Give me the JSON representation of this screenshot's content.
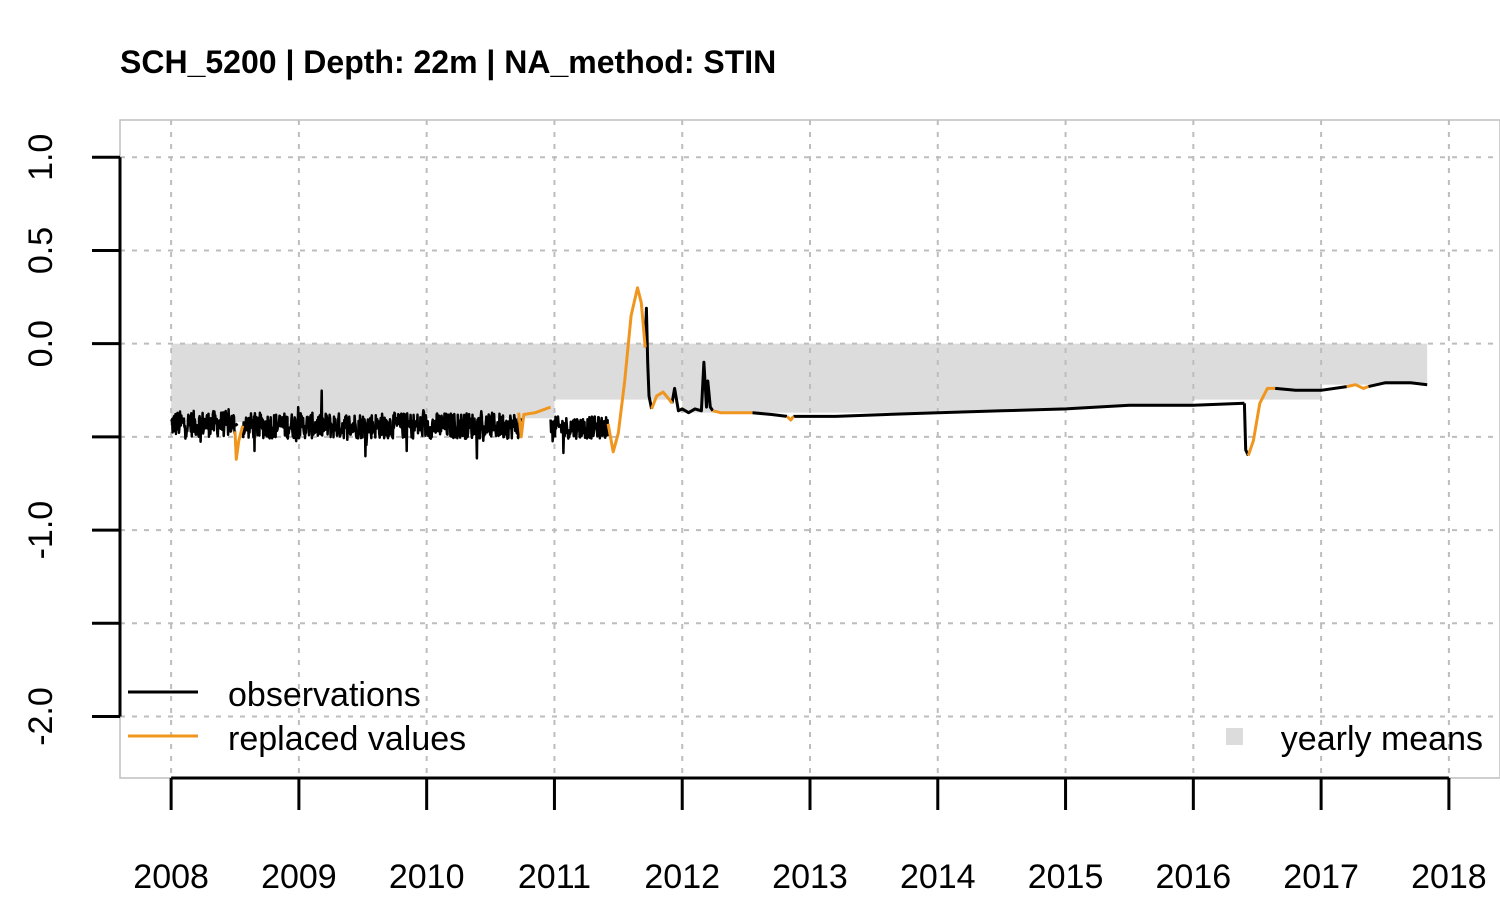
{
  "chart_data": {
    "type": "line",
    "title": "SCH_5200 | Depth: 22m | NA_method: STIN",
    "xlabel": "",
    "ylabel": "",
    "xlim": [
      2007.6,
      2018.4
    ],
    "ylim": [
      -2.33,
      1.2
    ],
    "x_ticks": [
      {
        "value": 2008,
        "label": "2008"
      },
      {
        "value": 2009,
        "label": "2009"
      },
      {
        "value": 2010,
        "label": "2010"
      },
      {
        "value": 2011,
        "label": "2011"
      },
      {
        "value": 2012,
        "label": "2012"
      },
      {
        "value": 2013,
        "label": "2013"
      },
      {
        "value": 2014,
        "label": "2014"
      },
      {
        "value": 2015,
        "label": "2015"
      },
      {
        "value": 2016,
        "label": "2016"
      },
      {
        "value": 2017,
        "label": "2017"
      },
      {
        "value": 2018,
        "label": "2018"
      }
    ],
    "y_ticks": [
      {
        "value": 1.0,
        "label": "1.0"
      },
      {
        "value": 0.5,
        "label": "0.5"
      },
      {
        "value": 0.0,
        "label": "0.0"
      },
      {
        "value": -0.5,
        "label": ""
      },
      {
        "value": -1.0,
        "label": "-1.0"
      },
      {
        "value": -1.5,
        "label": ""
      },
      {
        "value": -2.0,
        "label": "-2.0"
      }
    ],
    "grid": true,
    "legend": {
      "left_position": "bottom-left",
      "right_position": "bottom-right",
      "entries": [
        {
          "label": "observations",
          "symbol": "line",
          "color": "#000000"
        },
        {
          "label": "replaced values",
          "symbol": "line",
          "color": "#f0961e"
        },
        {
          "label": "yearly means",
          "symbol": "square",
          "color": "#dcdcdc"
        }
      ]
    },
    "colors": {
      "observations": "#000000",
      "replaced": "#f0961e",
      "yearly_means": "#dcdcdc"
    },
    "yearly_means": [
      {
        "x0": 2008.0,
        "x1": 2009.0,
        "value": -0.42
      },
      {
        "x0": 2009.0,
        "x1": 2010.0,
        "value": -0.43
      },
      {
        "x0": 2010.0,
        "x1": 2011.0,
        "value": -0.4
      },
      {
        "x0": 2011.0,
        "x1": 2012.0,
        "value": -0.3
      },
      {
        "x0": 2012.0,
        "x1": 2013.0,
        "value": -0.37
      },
      {
        "x0": 2013.0,
        "x1": 2014.0,
        "value": -0.37
      },
      {
        "x0": 2014.0,
        "x1": 2015.0,
        "value": -0.36
      },
      {
        "x0": 2015.0,
        "x1": 2016.0,
        "value": -0.34
      },
      {
        "x0": 2016.0,
        "x1": 2017.0,
        "value": -0.3
      },
      {
        "x0": 2017.0,
        "x1": 2017.83,
        "value": -0.22
      }
    ],
    "series": [
      {
        "name": "observations",
        "color": "#000000",
        "noise_segments": [
          {
            "x0": 2008.0,
            "x1": 2008.5,
            "mean": -0.43,
            "amp": 0.07
          },
          {
            "x0": 2008.56,
            "x1": 2010.72,
            "mean": -0.44,
            "amp": 0.07
          },
          {
            "x0": 2010.97,
            "x1": 2011.42,
            "mean": -0.45,
            "amp": 0.06
          }
        ],
        "paths": [
          [
            [
              2008.5,
              -0.44
            ],
            [
              2008.52,
              -0.43
            ]
          ],
          [
            [
              2010.72,
              -0.43
            ],
            [
              2010.74,
              -0.4
            ]
          ],
          [
            [
              2011.71,
              -0.02
            ],
            [
              2011.72,
              0.19
            ],
            [
              2011.73,
              -0.1
            ],
            [
              2011.74,
              -0.28
            ],
            [
              2011.76,
              -0.35
            ]
          ],
          [
            [
              2011.92,
              -0.32
            ],
            [
              2011.94,
              -0.24
            ],
            [
              2011.97,
              -0.36
            ],
            [
              2012.0,
              -0.35
            ],
            [
              2012.05,
              -0.37
            ],
            [
              2012.1,
              -0.35
            ],
            [
              2012.15,
              -0.36
            ],
            [
              2012.17,
              -0.1
            ],
            [
              2012.19,
              -0.34
            ],
            [
              2012.2,
              -0.2
            ],
            [
              2012.22,
              -0.34
            ],
            [
              2012.24,
              -0.36
            ]
          ],
          [
            [
              2012.55,
              -0.37
            ],
            [
              2012.7,
              -0.38
            ],
            [
              2012.82,
              -0.39
            ]
          ],
          [
            [
              2012.87,
              -0.39
            ],
            [
              2013.2,
              -0.39
            ],
            [
              2013.6,
              -0.38
            ],
            [
              2014.0,
              -0.37
            ],
            [
              2014.5,
              -0.36
            ],
            [
              2015.0,
              -0.35
            ],
            [
              2015.5,
              -0.33
            ],
            [
              2016.0,
              -0.33
            ],
            [
              2016.4,
              -0.32
            ]
          ],
          [
            [
              2016.4,
              -0.32
            ],
            [
              2016.41,
              -0.57
            ],
            [
              2016.43,
              -0.6
            ]
          ],
          [
            [
              2016.64,
              -0.24
            ],
            [
              2016.8,
              -0.25
            ],
            [
              2017.0,
              -0.25
            ],
            [
              2017.2,
              -0.23
            ]
          ],
          [
            [
              2017.37,
              -0.23
            ],
            [
              2017.5,
              -0.21
            ],
            [
              2017.7,
              -0.21
            ],
            [
              2017.83,
              -0.22
            ]
          ]
        ]
      },
      {
        "name": "replaced values",
        "color": "#f0961e",
        "paths": [
          [
            [
              2008.5,
              -0.47
            ],
            [
              2008.51,
              -0.62
            ],
            [
              2008.53,
              -0.52
            ],
            [
              2008.56,
              -0.44
            ]
          ],
          [
            [
              2010.72,
              -0.37
            ],
            [
              2010.74,
              -0.5
            ],
            [
              2010.76,
              -0.38
            ],
            [
              2010.85,
              -0.37
            ],
            [
              2010.97,
              -0.34
            ]
          ],
          [
            [
              2011.42,
              -0.43
            ],
            [
              2011.46,
              -0.58
            ],
            [
              2011.5,
              -0.48
            ],
            [
              2011.55,
              -0.2
            ],
            [
              2011.6,
              0.15
            ],
            [
              2011.65,
              0.3
            ],
            [
              2011.68,
              0.22
            ],
            [
              2011.71,
              -0.02
            ]
          ],
          [
            [
              2011.76,
              -0.35
            ],
            [
              2011.8,
              -0.28
            ],
            [
              2011.85,
              -0.26
            ],
            [
              2011.9,
              -0.3
            ],
            [
              2011.92,
              -0.32
            ]
          ],
          [
            [
              2012.24,
              -0.36
            ],
            [
              2012.3,
              -0.37
            ],
            [
              2012.45,
              -0.37
            ],
            [
              2012.55,
              -0.37
            ]
          ],
          [
            [
              2012.82,
              -0.39
            ],
            [
              2012.85,
              -0.41
            ],
            [
              2012.87,
              -0.39
            ]
          ],
          [
            [
              2016.43,
              -0.6
            ],
            [
              2016.47,
              -0.52
            ],
            [
              2016.52,
              -0.32
            ],
            [
              2016.58,
              -0.24
            ],
            [
              2016.64,
              -0.24
            ]
          ],
          [
            [
              2017.2,
              -0.23
            ],
            [
              2017.27,
              -0.22
            ],
            [
              2017.33,
              -0.24
            ],
            [
              2017.37,
              -0.23
            ]
          ]
        ]
      }
    ]
  }
}
